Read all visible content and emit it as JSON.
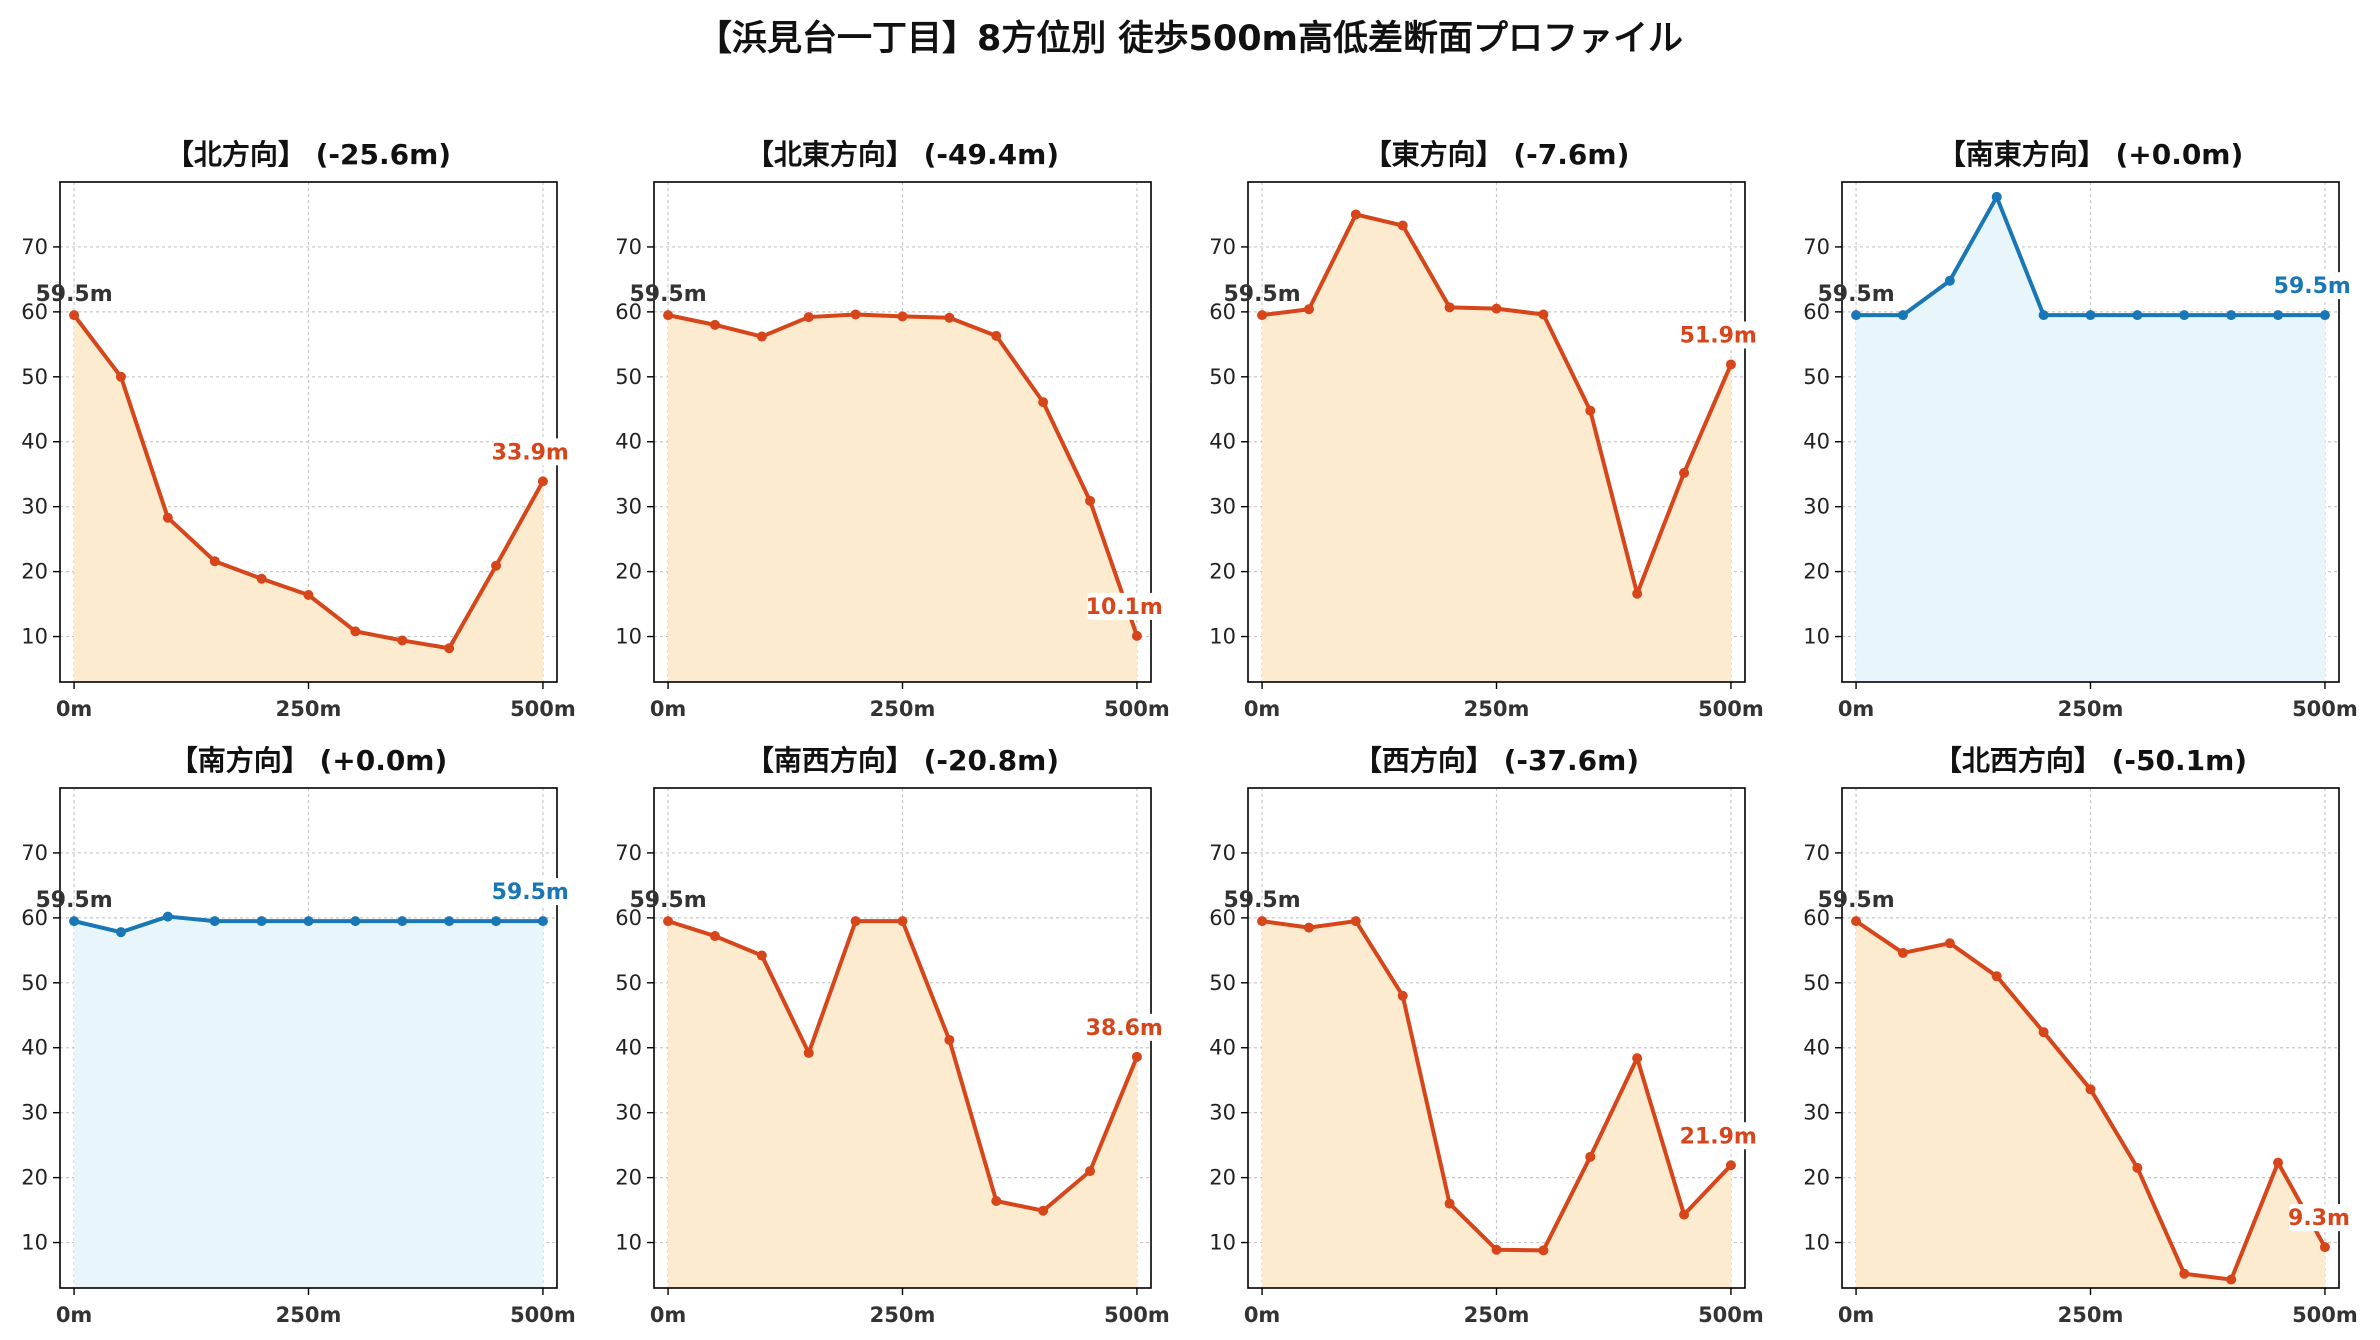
{
  "title": "【浜見台一丁目】8方位別 徒歩500m高低差断面プロファイル",
  "colors": {
    "down_line": "#d6461a",
    "down_fill": "#fdebd0",
    "flat_line": "#1a77b5",
    "flat_fill": "#e8f5fb",
    "start_label": "#333333",
    "grid": "#c8c8c8"
  },
  "chart_data": [
    {
      "type": "area",
      "title": "【北方向】 (-25.6m)",
      "x": [
        0,
        50,
        100,
        150,
        200,
        250,
        300,
        350,
        400,
        450,
        500
      ],
      "values": [
        59.5,
        50.0,
        28.3,
        21.6,
        18.9,
        16.4,
        10.8,
        9.4,
        8.2,
        20.9,
        33.9
      ],
      "start_label": "59.5m",
      "end_label": "33.9m",
      "trend": "down",
      "xticks": [
        "0m",
        "250m",
        "500m"
      ],
      "yticks": [
        10,
        20,
        30,
        40,
        50,
        60,
        70
      ],
      "xlim": [
        -15,
        515
      ],
      "ylim": [
        3,
        80
      ],
      "grid": true
    },
    {
      "type": "area",
      "title": "【北東方向】 (-49.4m)",
      "x": [
        0,
        50,
        100,
        150,
        200,
        250,
        300,
        350,
        400,
        450,
        500
      ],
      "values": [
        59.5,
        58.0,
        56.2,
        59.2,
        59.6,
        59.3,
        59.1,
        56.3,
        46.1,
        30.9,
        10.1
      ],
      "start_label": "59.5m",
      "end_label": "10.1m",
      "trend": "down",
      "xticks": [
        "0m",
        "250m",
        "500m"
      ],
      "yticks": [
        10,
        20,
        30,
        40,
        50,
        60,
        70
      ],
      "xlim": [
        -15,
        515
      ],
      "ylim": [
        3,
        80
      ],
      "grid": true
    },
    {
      "type": "area",
      "title": "【東方向】 (-7.6m)",
      "x": [
        0,
        50,
        100,
        150,
        200,
        250,
        300,
        350,
        400,
        450,
        500
      ],
      "values": [
        59.5,
        60.4,
        75.0,
        73.3,
        60.7,
        60.5,
        59.6,
        44.8,
        16.6,
        35.2,
        51.9
      ],
      "start_label": "59.5m",
      "end_label": "51.9m",
      "trend": "down",
      "xticks": [
        "0m",
        "250m",
        "500m"
      ],
      "yticks": [
        10,
        20,
        30,
        40,
        50,
        60,
        70
      ],
      "xlim": [
        -15,
        515
      ],
      "ylim": [
        3,
        80
      ],
      "grid": true
    },
    {
      "type": "area",
      "title": "【南東方向】 (+0.0m)",
      "x": [
        0,
        50,
        100,
        150,
        200,
        250,
        300,
        350,
        400,
        450,
        500
      ],
      "values": [
        59.5,
        59.5,
        64.8,
        77.7,
        59.5,
        59.5,
        59.5,
        59.5,
        59.5,
        59.5,
        59.5
      ],
      "start_label": "59.5m",
      "end_label": "59.5m",
      "trend": "flat",
      "xticks": [
        "0m",
        "250m",
        "500m"
      ],
      "yticks": [
        10,
        20,
        30,
        40,
        50,
        60,
        70
      ],
      "xlim": [
        -15,
        515
      ],
      "ylim": [
        3,
        80
      ],
      "grid": true
    },
    {
      "type": "area",
      "title": "【南方向】 (+0.0m)",
      "x": [
        0,
        50,
        100,
        150,
        200,
        250,
        300,
        350,
        400,
        450,
        500
      ],
      "values": [
        59.5,
        57.8,
        60.2,
        59.5,
        59.5,
        59.5,
        59.5,
        59.5,
        59.5,
        59.5,
        59.5
      ],
      "start_label": "59.5m",
      "end_label": "59.5m",
      "trend": "flat",
      "xticks": [
        "0m",
        "250m",
        "500m"
      ],
      "yticks": [
        10,
        20,
        30,
        40,
        50,
        60,
        70
      ],
      "xlim": [
        -15,
        515
      ],
      "ylim": [
        3,
        80
      ],
      "grid": true
    },
    {
      "type": "area",
      "title": "【南西方向】 (-20.8m)",
      "x": [
        0,
        50,
        100,
        150,
        200,
        250,
        300,
        350,
        400,
        450,
        500
      ],
      "values": [
        59.5,
        57.2,
        54.2,
        39.2,
        59.5,
        59.5,
        41.2,
        16.4,
        14.9,
        21.0,
        38.6
      ],
      "start_label": "59.5m",
      "end_label": "38.6m",
      "trend": "down",
      "xticks": [
        "0m",
        "250m",
        "500m"
      ],
      "yticks": [
        10,
        20,
        30,
        40,
        50,
        60,
        70
      ],
      "xlim": [
        -15,
        515
      ],
      "ylim": [
        3,
        80
      ],
      "grid": true
    },
    {
      "type": "area",
      "title": "【西方向】 (-37.6m)",
      "x": [
        0,
        50,
        100,
        150,
        200,
        250,
        300,
        350,
        400,
        450,
        500
      ],
      "values": [
        59.5,
        58.5,
        59.5,
        48.0,
        16.0,
        8.9,
        8.8,
        23.2,
        38.4,
        14.3,
        21.9
      ],
      "start_label": "59.5m",
      "end_label": "21.9m",
      "trend": "down",
      "xticks": [
        "0m",
        "250m",
        "500m"
      ],
      "yticks": [
        10,
        20,
        30,
        40,
        50,
        60,
        70
      ],
      "xlim": [
        -15,
        515
      ],
      "ylim": [
        3,
        80
      ],
      "grid": true
    },
    {
      "type": "area",
      "title": "【北西方向】 (-50.1m)",
      "x": [
        0,
        50,
        100,
        150,
        200,
        250,
        300,
        350,
        400,
        450,
        500
      ],
      "values": [
        59.5,
        54.6,
        56.1,
        51.0,
        42.4,
        33.6,
        21.5,
        5.2,
        4.3,
        22.3,
        9.3
      ],
      "start_label": "59.5m",
      "end_label": "9.3m",
      "trend": "down",
      "xticks": [
        "0m",
        "250m",
        "500m"
      ],
      "yticks": [
        10,
        20,
        30,
        40,
        50,
        60,
        70
      ],
      "xlim": [
        -15,
        515
      ],
      "ylim": [
        3,
        80
      ],
      "grid": true
    }
  ]
}
